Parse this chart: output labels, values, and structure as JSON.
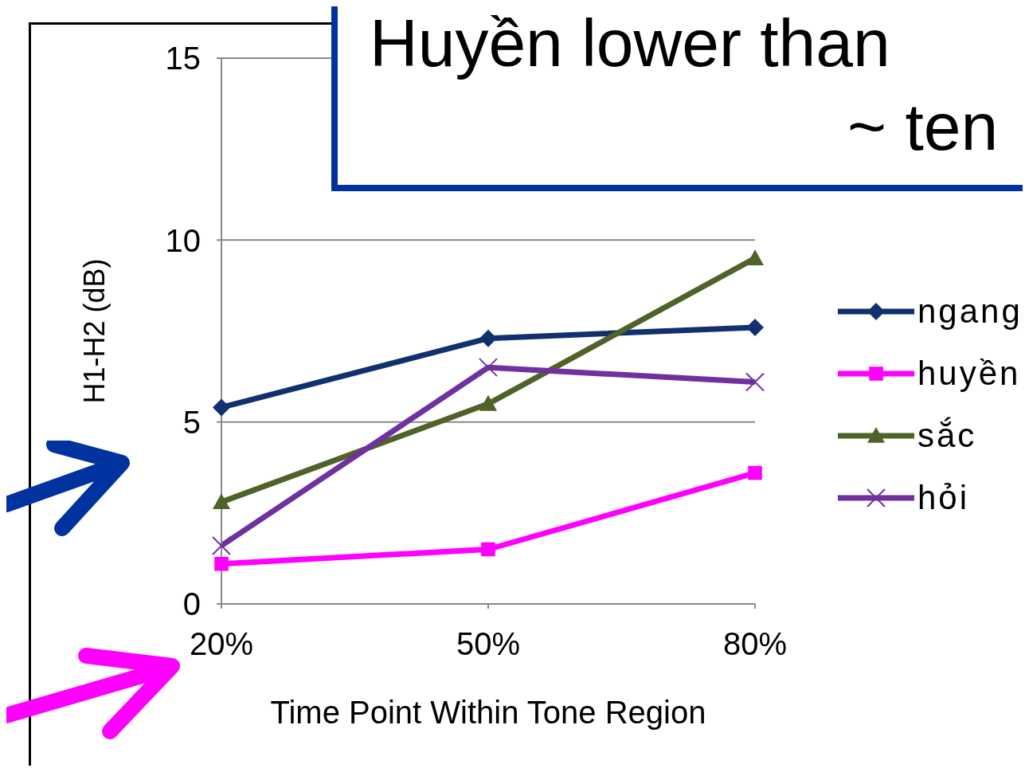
{
  "chart_data": {
    "type": "line",
    "xlabel": "Time Point Within Tone Region",
    "ylabel": "H1-H2 (dB)",
    "categories": [
      "20%",
      "50%",
      "80%"
    ],
    "series": [
      {
        "name": "ngang",
        "color": "#10306e",
        "values": [
          5.4,
          7.3,
          7.6
        ],
        "marker": "diamond"
      },
      {
        "name": "huyền",
        "color": "#ff00ff",
        "values": [
          1.1,
          1.5,
          3.6
        ],
        "marker": "square"
      },
      {
        "name": "sắc",
        "color": "#4f6228",
        "values": [
          2.8,
          5.5,
          9.5
        ],
        "marker": "triangle"
      },
      {
        "name": "hỏi",
        "color": "#7030a0",
        "values": [
          1.6,
          6.5,
          6.1
        ],
        "marker": "cross"
      }
    ],
    "ylim": [
      0,
      15
    ],
    "yticks": [
      0,
      5,
      10,
      15
    ],
    "grid": "y",
    "legend": "right",
    "annotations": [
      "Huyền lower than",
      "~ ten"
    ]
  }
}
